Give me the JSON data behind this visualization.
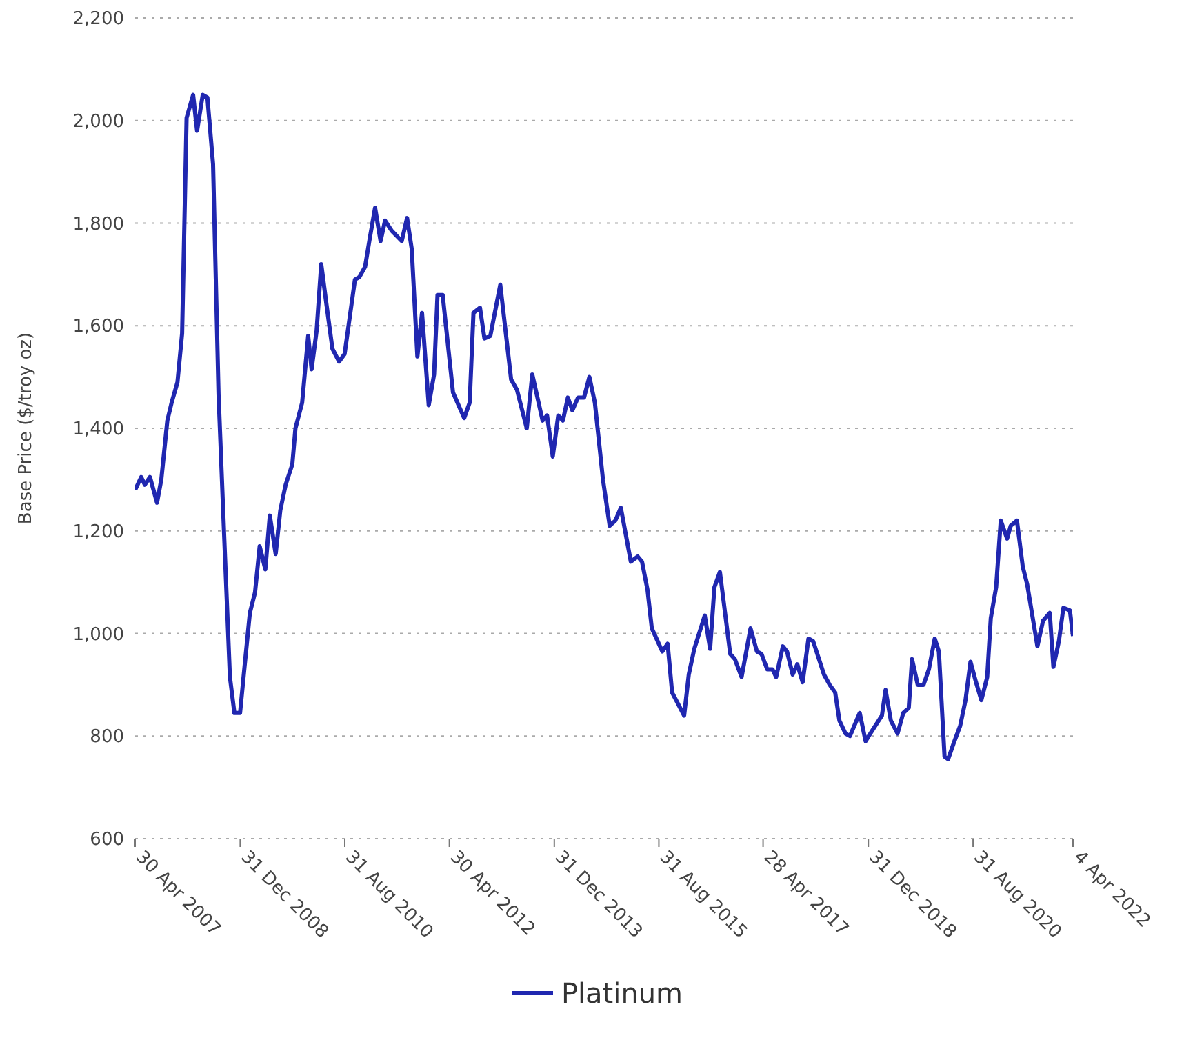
{
  "chart_data": {
    "type": "line",
    "ylabel": "Base Price ($/troy oz)",
    "xlim": [
      "2007-04-30",
      "2022-04-04"
    ],
    "xticks": [
      {
        "value": "2007-04-30",
        "label": "30 Apr 2007"
      },
      {
        "value": "2008-12-31",
        "label": "31 Dec 2008"
      },
      {
        "value": "2010-08-31",
        "label": "31 Aug 2010"
      },
      {
        "value": "2012-04-30",
        "label": "30 Apr 2012"
      },
      {
        "value": "2013-12-31",
        "label": "31 Dec 2013"
      },
      {
        "value": "2015-08-31",
        "label": "31 Aug 2015"
      },
      {
        "value": "2017-04-28",
        "label": "28 Apr 2017"
      },
      {
        "value": "2018-12-31",
        "label": "31 Dec 2018"
      },
      {
        "value": "2020-08-31",
        "label": "31 Aug 2020"
      },
      {
        "value": "2022-04-04",
        "label": "4 Apr 2022"
      }
    ],
    "ylim": [
      600,
      2200
    ],
    "yticks": [
      {
        "value": 600,
        "label": "600"
      },
      {
        "value": 800,
        "label": "800"
      },
      {
        "value": 1000,
        "label": "1,000"
      },
      {
        "value": 1200,
        "label": "1,200"
      },
      {
        "value": 1400,
        "label": "1,400"
      },
      {
        "value": 1600,
        "label": "1,600"
      },
      {
        "value": 1800,
        "label": "1,800"
      },
      {
        "value": 2000,
        "label": "2,000"
      },
      {
        "value": 2200,
        "label": "2,200"
      }
    ],
    "grid": "y",
    "legend": "bottom",
    "marker": "none",
    "line_style": "solid",
    "x": [
      "2007-04-30",
      "2007-06-04",
      "2007-06-25",
      "2007-07-25",
      "2007-09-04",
      "2007-09-29",
      "2007-11-03",
      "2007-11-28",
      "2008-01-01",
      "2008-01-28",
      "2008-02-23",
      "2008-04-01",
      "2008-04-24",
      "2008-05-27",
      "2008-06-23",
      "2008-07-26",
      "2008-08-27",
      "2008-09-28",
      "2008-11-01",
      "2008-11-27",
      "2008-12-30",
      "2009-01-25",
      "2009-02-25",
      "2009-03-27",
      "2009-04-23",
      "2009-05-26",
      "2009-06-21",
      "2009-07-25",
      "2009-08-21",
      "2009-09-21",
      "2009-10-30",
      "2009-11-17",
      "2009-12-26",
      "2010-01-30",
      "2010-02-19",
      "2010-03-20",
      "2010-04-16",
      "2010-05-17",
      "2010-06-20",
      "2010-07-29",
      "2010-08-30",
      "2010-10-29",
      "2010-11-24",
      "2010-12-27",
      "2011-01-23",
      "2011-02-23",
      "2011-03-27",
      "2011-04-22",
      "2011-05-31",
      "2011-07-28",
      "2011-08-28",
      "2011-09-24",
      "2011-10-27",
      "2011-11-23",
      "2012-01-01",
      "2012-02-01",
      "2012-02-21",
      "2012-03-22",
      "2012-05-21",
      "2012-07-25",
      "2012-08-26",
      "2012-09-17",
      "2012-10-25",
      "2012-11-20",
      "2012-12-24",
      "2013-02-20",
      "2013-04-24",
      "2013-05-28",
      "2013-07-24",
      "2013-08-25",
      "2013-10-24",
      "2013-11-19",
      "2013-12-22",
      "2014-01-23",
      "2014-02-19",
      "2014-03-20",
      "2014-04-15",
      "2014-05-18",
      "2014-06-22",
      "2014-07-23",
      "2014-08-24",
      "2014-10-10",
      "2014-11-18",
      "2014-12-21",
      "2015-01-22",
      "2015-03-21",
      "2015-04-30",
      "2015-05-25",
      "2015-06-26",
      "2015-07-21",
      "2015-09-20",
      "2015-10-21",
      "2015-11-16",
      "2016-01-25",
      "2016-02-21",
      "2016-03-24",
      "2016-05-24",
      "2016-06-24",
      "2016-07-19",
      "2016-08-20",
      "2016-10-19",
      "2016-11-15",
      "2016-12-24",
      "2017-02-14",
      "2017-03-23",
      "2017-04-19",
      "2017-05-22",
      "2017-06-22",
      "2017-07-13",
      "2017-08-21",
      "2017-09-14",
      "2017-10-17",
      "2017-11-13",
      "2017-12-14",
      "2018-01-17",
      "2018-02-13",
      "2018-04-17",
      "2018-05-20",
      "2018-06-21",
      "2018-07-16",
      "2018-08-20",
      "2018-09-15",
      "2018-11-11",
      "2018-12-15",
      "2019-01-21",
      "2019-03-20",
      "2019-04-10",
      "2019-05-11",
      "2019-06-19",
      "2019-07-22",
      "2019-08-23",
      "2019-09-11",
      "2019-10-14",
      "2019-11-17",
      "2019-12-18",
      "2020-01-21",
      "2020-02-14",
      "2020-03-18",
      "2020-04-08",
      "2020-05-09",
      "2020-06-17",
      "2020-07-18",
      "2020-08-16",
      "2020-09-17",
      "2020-10-18",
      "2020-11-21",
      "2020-12-12",
      "2021-01-12",
      "2021-02-08",
      "2021-03-17",
      "2021-04-07",
      "2021-05-13",
      "2021-06-16",
      "2021-07-12",
      "2021-09-09",
      "2021-10-12",
      "2021-11-20",
      "2021-12-11",
      "2022-01-12",
      "2022-02-07",
      "2022-03-17",
      "2022-04-04"
    ],
    "series": [
      {
        "name": "Platinum",
        "color": "#2027b0",
        "values": [
          1280,
          1305,
          1290,
          1305,
          1255,
          1300,
          1415,
          1450,
          1490,
          1585,
          2005,
          2050,
          1980,
          2050,
          2045,
          1915,
          1465,
          1195,
          915,
          845,
          845,
          935,
          1040,
          1080,
          1170,
          1125,
          1230,
          1155,
          1240,
          1290,
          1330,
          1400,
          1450,
          1580,
          1515,
          1590,
          1720,
          1640,
          1555,
          1530,
          1545,
          1690,
          1695,
          1715,
          1770,
          1830,
          1765,
          1805,
          1785,
          1765,
          1810,
          1750,
          1540,
          1625,
          1445,
          1505,
          1660,
          1660,
          1470,
          1420,
          1450,
          1625,
          1635,
          1575,
          1580,
          1680,
          1495,
          1475,
          1400,
          1505,
          1415,
          1425,
          1345,
          1425,
          1415,
          1460,
          1435,
          1460,
          1460,
          1500,
          1450,
          1300,
          1210,
          1220,
          1245,
          1140,
          1150,
          1140,
          1085,
          1010,
          965,
          980,
          885,
          840,
          920,
          970,
          1035,
          970,
          1090,
          1120,
          960,
          950,
          915,
          1010,
          965,
          960,
          930,
          930,
          915,
          975,
          965,
          920,
          940,
          905,
          990,
          985,
          920,
          900,
          885,
          830,
          805,
          800,
          845,
          790,
          810,
          840,
          890,
          830,
          805,
          845,
          855,
          950,
          900,
          900,
          930,
          990,
          965,
          760,
          755,
          785,
          820,
          870,
          945,
          905,
          870,
          915,
          1030,
          1090,
          1220,
          1185,
          1210,
          1220,
          1130,
          1095,
          975,
          1025,
          1040,
          935,
          985,
          1050,
          1045,
          995
        ]
      }
    ]
  }
}
